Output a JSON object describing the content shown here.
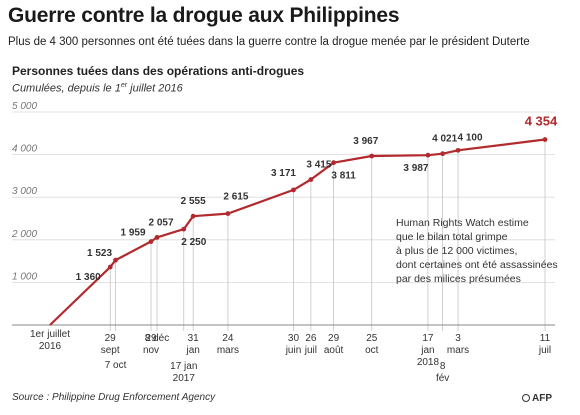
{
  "title": "Guerre contre la drogue aux Philippines",
  "subtitle": "Plus de 4 300 personnes ont été tuées dans la guerre contre la drogue menée par le président Duterte",
  "section_title": "Personnes tuées dans des opérations anti-drogues",
  "section_subtitle_pre": "Cumulées, depuis le 1",
  "section_subtitle_sup": "er",
  "section_subtitle_post": " juillet 2016",
  "annotation": "Human Rights Watch estime\nque le bilan total grimpe\nà plus de 12 000 victimes,\ndont certaines ont été assassinées\npar des milices présumées",
  "source": "Source : Philippine Drug Enforcement Agency",
  "logo": "AFP",
  "colors": {
    "line": "#b22a2e",
    "highlight": "#b22a2e",
    "grid": "#d9d9d9",
    "axis": "#888888",
    "text": "#333333"
  },
  "chart_data": {
    "type": "line",
    "ylim": [
      0,
      5000
    ],
    "yticks": [
      1000,
      2000,
      3000,
      4000,
      5000
    ],
    "ytick_labels": [
      "1 000",
      "2 000",
      "3 000",
      "4 000",
      "5 000"
    ],
    "series": [
      {
        "points": [
          {
            "date": "2016-07-01",
            "value": 0
          },
          {
            "date": "2016-09-29",
            "value": 1360,
            "label": "1 360"
          },
          {
            "date": "2016-10-07",
            "value": 1523,
            "label": "1 523"
          },
          {
            "date": "2016-11-29",
            "value": 1959,
            "label": "1 959"
          },
          {
            "date": "2016-12-08",
            "value": 2057,
            "label": "2 057"
          },
          {
            "date": "2017-01-17",
            "value": 2250,
            "label": "2 250"
          },
          {
            "date": "2017-01-31",
            "value": 2555,
            "label": "2 555"
          },
          {
            "date": "2017-03-24",
            "value": 2615,
            "label": "2 615"
          },
          {
            "date": "2017-06-30",
            "value": 3171,
            "label": "3 171"
          },
          {
            "date": "2017-07-26",
            "value": 3415,
            "label": "3 415"
          },
          {
            "date": "2017-08-29",
            "value": 3811,
            "label": "3 811"
          },
          {
            "date": "2017-10-25",
            "value": 3967,
            "label": "3 967"
          },
          {
            "date": "2018-01-17",
            "value": 3987,
            "label": "3 987"
          },
          {
            "date": "2018-02-08",
            "value": 4021,
            "label": "4 021"
          },
          {
            "date": "2018-03-03",
            "value": 4100,
            "label": "4 100"
          },
          {
            "date": "2018-07-11",
            "value": 4354,
            "label": "4 354"
          }
        ]
      }
    ],
    "x_labels": [
      {
        "date": "2016-07-01",
        "lines": [
          "1er juillet",
          "2016"
        ]
      },
      {
        "date": "2016-09-29",
        "lines": [
          "29",
          "sept"
        ]
      },
      {
        "date": "2016-10-07",
        "lines": [
          "7 oct"
        ]
      },
      {
        "date": "2016-11-29",
        "lines": [
          "29",
          "nov"
        ]
      },
      {
        "date": "2016-12-08",
        "lines": [
          "8 déc"
        ]
      },
      {
        "date": "2017-01-17",
        "lines": [
          "17 jan",
          "2017"
        ]
      },
      {
        "date": "2017-01-31",
        "lines": [
          "31",
          "jan"
        ]
      },
      {
        "date": "2017-03-24",
        "lines": [
          "24",
          "mars"
        ]
      },
      {
        "date": "2017-06-30",
        "lines": [
          "30",
          "juin"
        ]
      },
      {
        "date": "2017-07-26",
        "lines": [
          "26",
          "juil"
        ]
      },
      {
        "date": "2017-08-29",
        "lines": [
          "29",
          "août"
        ]
      },
      {
        "date": "2017-10-25",
        "lines": [
          "25",
          "oct"
        ]
      },
      {
        "date": "2018-01-17",
        "lines": [
          "17",
          "jan",
          "2018"
        ]
      },
      {
        "date": "2018-02-08",
        "lines": [
          "8",
          "fév"
        ]
      },
      {
        "date": "2018-03-03",
        "lines": [
          "3",
          "mars"
        ]
      },
      {
        "date": "2018-07-11",
        "lines": [
          "11",
          "juil"
        ]
      }
    ]
  }
}
